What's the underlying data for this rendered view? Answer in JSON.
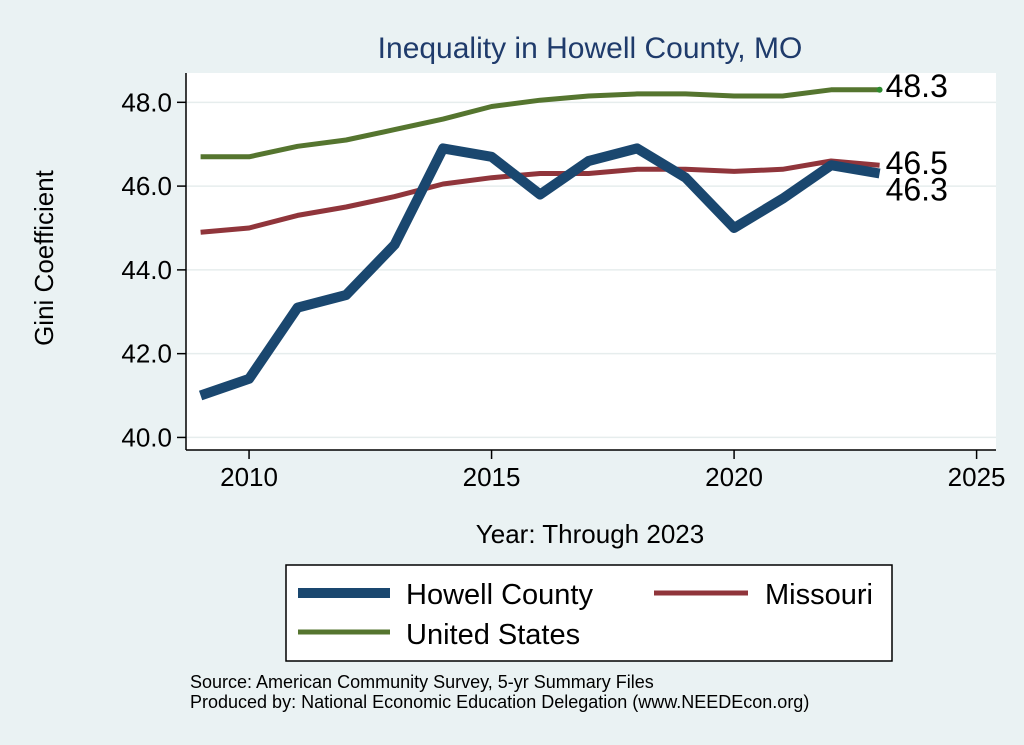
{
  "chart_data": {
    "type": "line",
    "title": "Inequality in Howell County, MO",
    "xlabel": "Year: Through 2023",
    "ylabel": "Gini Coefficient",
    "xlim": [
      2008.7,
      2025.4
    ],
    "ylim": [
      39.7,
      48.7
    ],
    "x_ticks": [
      2010,
      2015,
      2020,
      2025
    ],
    "y_ticks": [
      40,
      42,
      44,
      46,
      48
    ],
    "y_tick_labels": [
      "40.0",
      "42.0",
      "44.0",
      "46.0",
      "48.0"
    ],
    "grid": true,
    "legend_position": "bottom",
    "series": [
      {
        "name": "Howell County",
        "color": "#1a476f",
        "x": [
          2009,
          2010,
          2011,
          2012,
          2013,
          2014,
          2015,
          2016,
          2017,
          2018,
          2019,
          2020,
          2021,
          2022,
          2023
        ],
        "values": [
          41.0,
          41.4,
          43.1,
          43.4,
          44.6,
          46.9,
          46.7,
          45.8,
          46.6,
          46.9,
          46.2,
          45.0,
          45.7,
          46.5,
          46.3
        ],
        "end_label": "46.3"
      },
      {
        "name": "Missouri",
        "color": "#90353b",
        "x": [
          2009,
          2010,
          2011,
          2012,
          2013,
          2014,
          2015,
          2016,
          2017,
          2018,
          2019,
          2020,
          2021,
          2022,
          2023
        ],
        "values": [
          44.9,
          45.0,
          45.3,
          45.5,
          45.75,
          46.05,
          46.2,
          46.3,
          46.3,
          46.4,
          46.4,
          46.35,
          46.4,
          46.6,
          46.5
        ],
        "end_label": "46.5"
      },
      {
        "name": "United States",
        "color": "#55752f",
        "x": [
          2009,
          2010,
          2011,
          2012,
          2013,
          2014,
          2015,
          2016,
          2017,
          2018,
          2019,
          2020,
          2021,
          2022,
          2023
        ],
        "values": [
          46.7,
          46.7,
          46.95,
          47.1,
          47.35,
          47.6,
          47.9,
          48.05,
          48.15,
          48.2,
          48.2,
          48.15,
          48.15,
          48.3,
          48.3
        ],
        "end_label": "48.3"
      }
    ]
  },
  "legend": {
    "items": [
      "Howell County",
      "Missouri",
      "United States"
    ]
  },
  "notes": {
    "source": "Source: American Community Survey, 5-yr Summary Files",
    "produced": "Produced by: National Economic Education Delegation (www.NEEDEcon.org)"
  }
}
